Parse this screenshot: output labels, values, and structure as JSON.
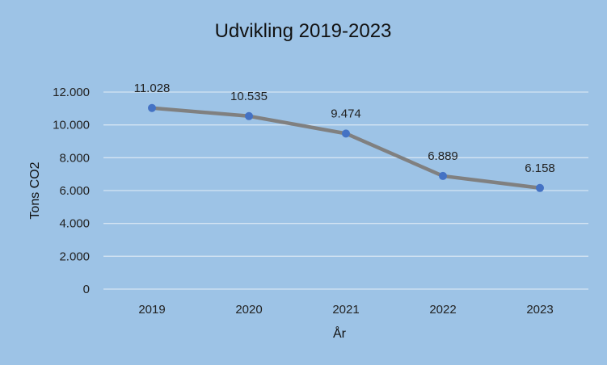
{
  "chart_data": {
    "type": "line",
    "title": "Udvikling 2019-2023",
    "xlabel": "År",
    "ylabel": "Tons CO2",
    "categories": [
      "2019",
      "2020",
      "2021",
      "2022",
      "2023"
    ],
    "values": [
      11028,
      10535,
      9474,
      6889,
      6158
    ],
    "data_labels": [
      "11.028",
      "10.535",
      "9.474",
      "6.889",
      "6.158"
    ],
    "ylim": [
      0,
      12000
    ],
    "yticks": [
      0,
      2000,
      4000,
      6000,
      8000,
      10000,
      12000
    ],
    "ytick_labels": [
      "0",
      "2.000",
      "4.000",
      "6.000",
      "8.000",
      "10.000",
      "12.000"
    ],
    "grid": true,
    "legend": "none",
    "colors": {
      "background": "#9dc3e6",
      "grid": "#d6e5f3",
      "line": "#808080",
      "marker": "#4472c4"
    }
  }
}
